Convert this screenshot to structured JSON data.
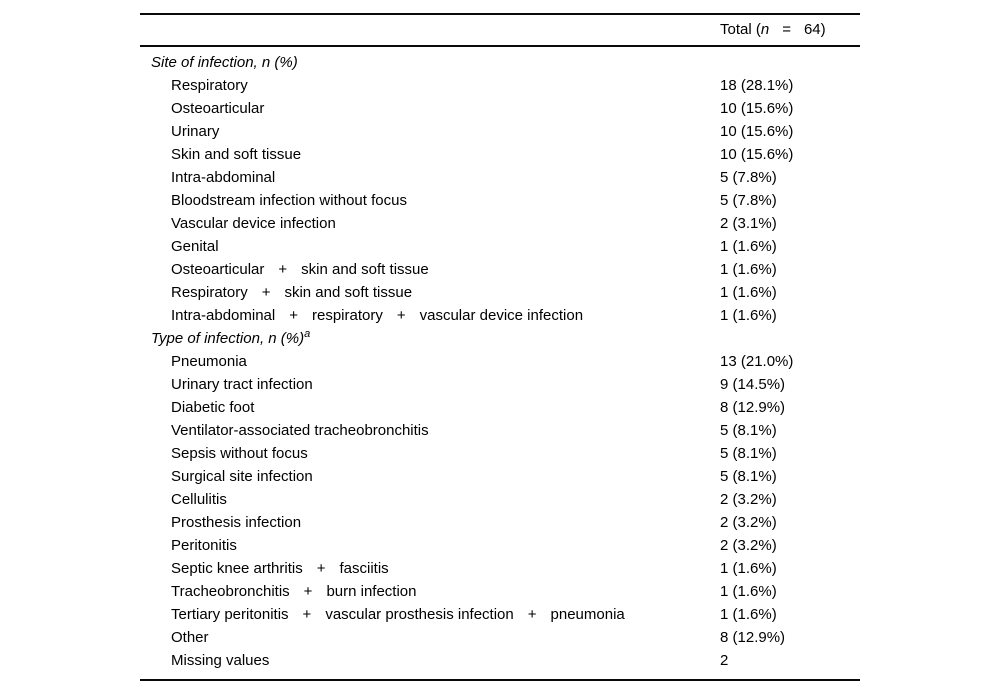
{
  "page": {
    "background": "#ffffff",
    "text_color": "#000000",
    "rule_color": "#0a0a0a"
  },
  "table": {
    "header": {
      "total_prefix": "Total (",
      "total_n": "n",
      "equals": "=",
      "total_suffix": "64)"
    },
    "plus_sign": "+",
    "sections": [
      {
        "title": "Site of infection, n (%)",
        "title_sup": "",
        "rows": [
          {
            "parts": [
              "Respiratory"
            ],
            "value": "18 (28.1%)"
          },
          {
            "parts": [
              "Osteoarticular"
            ],
            "value": "10 (15.6%)"
          },
          {
            "parts": [
              "Urinary"
            ],
            "value": "10 (15.6%)"
          },
          {
            "parts": [
              "Skin and soft tissue"
            ],
            "value": "10 (15.6%)"
          },
          {
            "parts": [
              "Intra-abdominal"
            ],
            "value": "5 (7.8%)"
          },
          {
            "parts": [
              "Bloodstream infection without focus"
            ],
            "value": "5 (7.8%)"
          },
          {
            "parts": [
              "Vascular device infection"
            ],
            "value": "2 (3.1%)"
          },
          {
            "parts": [
              "Genital"
            ],
            "value": "1 (1.6%)"
          },
          {
            "parts": [
              "Osteoarticular",
              "skin and soft tissue"
            ],
            "value": "1 (1.6%)"
          },
          {
            "parts": [
              "Respiratory",
              "skin and soft tissue"
            ],
            "value": "1 (1.6%)"
          },
          {
            "parts": [
              "Intra-abdominal",
              "respiratory",
              "vascular device infection"
            ],
            "value": "1 (1.6%)"
          }
        ]
      },
      {
        "title": "Type of infection, n (%)",
        "title_sup": "a",
        "rows": [
          {
            "parts": [
              "Pneumonia"
            ],
            "value": "13 (21.0%)"
          },
          {
            "parts": [
              "Urinary tract infection"
            ],
            "value": "9 (14.5%)"
          },
          {
            "parts": [
              "Diabetic foot"
            ],
            "value": "8 (12.9%)"
          },
          {
            "parts": [
              "Ventilator-associated tracheobronchitis"
            ],
            "value": "5 (8.1%)"
          },
          {
            "parts": [
              "Sepsis without focus"
            ],
            "value": "5 (8.1%)"
          },
          {
            "parts": [
              "Surgical site infection"
            ],
            "value": "5 (8.1%)"
          },
          {
            "parts": [
              "Cellulitis"
            ],
            "value": "2 (3.2%)"
          },
          {
            "parts": [
              "Prosthesis infection"
            ],
            "value": "2 (3.2%)"
          },
          {
            "parts": [
              "Peritonitis"
            ],
            "value": "2 (3.2%)"
          },
          {
            "parts": [
              "Septic knee arthritis",
              "fasciitis"
            ],
            "value": "1 (1.6%)"
          },
          {
            "parts": [
              "Tracheobronchitis",
              "burn infection"
            ],
            "value": "1 (1.6%)"
          },
          {
            "parts": [
              "Tertiary peritonitis",
              "vascular prosthesis infection",
              "pneumonia"
            ],
            "value": "1 (1.6%)"
          },
          {
            "parts": [
              "Other"
            ],
            "value": "8 (12.9%)"
          },
          {
            "parts": [
              "Missing values"
            ],
            "value": "2"
          }
        ]
      }
    ]
  }
}
